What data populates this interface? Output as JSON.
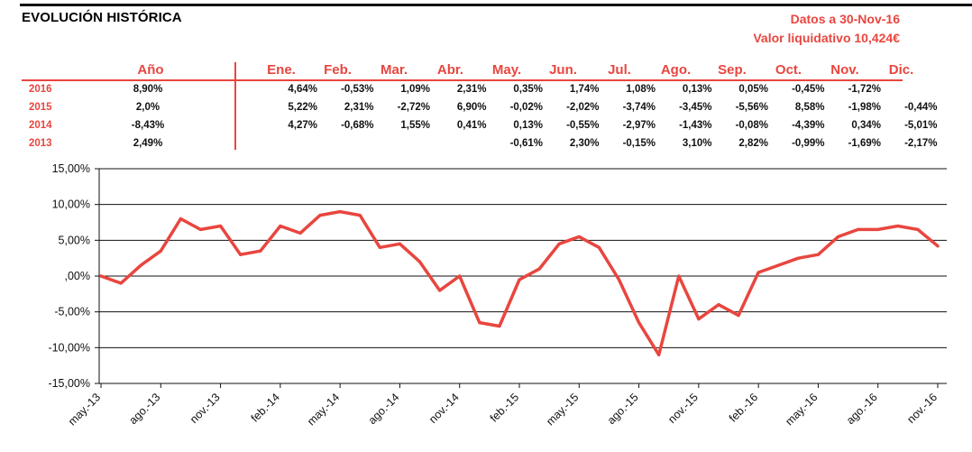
{
  "header": {
    "title": "EVOLUCIÓN HISTÓRICA",
    "date_label": "Datos a 30-Nov-16",
    "nav_label": "Valor liquidativo 10,424€"
  },
  "returns_table": {
    "headers": [
      "Año",
      "Ene.",
      "Feb.",
      "Mar.",
      "Abr.",
      "May.",
      "Jun.",
      "Jul.",
      "Ago.",
      "Sep.",
      "Oct.",
      "Nov.",
      "Dic."
    ],
    "rows": [
      {
        "year": "2016",
        "annual": "8,90%",
        "months": [
          "4,64%",
          "-0,53%",
          "1,09%",
          "2,31%",
          "0,35%",
          "1,74%",
          "1,08%",
          "0,13%",
          "0,05%",
          "-0,45%",
          "-1,72%",
          ""
        ]
      },
      {
        "year": "2015",
        "annual": "2,0%",
        "months": [
          "5,22%",
          "2,31%",
          "-2,72%",
          "6,90%",
          "-0,02%",
          "-2,02%",
          "-3,74%",
          "-3,45%",
          "-5,56%",
          "8,58%",
          "-1,98%",
          "-0,44%"
        ]
      },
      {
        "year": "2014",
        "annual": "-8,43%",
        "months": [
          "4,27%",
          "-0,68%",
          "1,55%",
          "0,41%",
          "0,13%",
          "-0,55%",
          "-2,97%",
          "-1,43%",
          "-0,08%",
          "-4,39%",
          "0,34%",
          "-5,01%"
        ]
      },
      {
        "year": "2013",
        "annual": "2,49%",
        "months": [
          "",
          "",
          "",
          "",
          "-0,61%",
          "2,30%",
          "-0,15%",
          "3,10%",
          "2,82%",
          "-0,99%",
          "-1,69%",
          "-2,17%"
        ]
      }
    ]
  },
  "chart_data": {
    "type": "line",
    "title": "",
    "xlabel": "",
    "ylabel": "",
    "ylim": [
      -15,
      15
    ],
    "yticks": [
      15,
      10,
      5,
      0,
      -5,
      -10,
      -15
    ],
    "ytick_labels": [
      "15,00%",
      "10,00%",
      "5,00%",
      ",00%",
      "-5,00%",
      "-10,00%",
      "-15,00%"
    ],
    "xtick_labels": [
      "may.-13",
      "ago.-13",
      "nov.-13",
      "feb.-14",
      "may.-14",
      "ago.-14",
      "nov.-14",
      "feb.-15",
      "may.-15",
      "ago.-15",
      "nov.-15",
      "feb.-16",
      "may.-16",
      "ago.-16",
      "nov.-16"
    ],
    "grid": true,
    "line_color": "#e8463f",
    "series": [
      {
        "x": [
          "may.-13",
          "jun.-13",
          "jul.-13",
          "ago.-13",
          "sep.-13",
          "oct.-13",
          "nov.-13",
          "dic.-13",
          "ene.-14",
          "feb.-14",
          "mar.-14",
          "abr.-14",
          "may.-14",
          "jun.-14",
          "jul.-14",
          "ago.-14",
          "sep.-14",
          "oct.-14",
          "nov.-14",
          "dic.-14",
          "ene.-15",
          "feb.-15",
          "mar.-15",
          "abr.-15",
          "may.-15",
          "jun.-15",
          "jul.-15",
          "ago.-15",
          "sep.-15",
          "oct.-15",
          "nov.-15",
          "dic.-15",
          "ene.-16",
          "feb.-16",
          "mar.-16",
          "abr.-16",
          "may.-16",
          "jun.-16",
          "jul.-16",
          "ago.-16",
          "sep.-16",
          "oct.-16",
          "nov.-16"
        ],
        "values": [
          0.0,
          -1.0,
          1.5,
          3.5,
          8.0,
          6.5,
          7.0,
          3.0,
          3.5,
          7.0,
          6.0,
          8.5,
          9.0,
          8.5,
          4.0,
          4.5,
          2.0,
          -2.0,
          0.0,
          -6.5,
          -7.0,
          -0.5,
          1.0,
          4.5,
          5.5,
          4.0,
          -0.5,
          -6.5,
          -11.0,
          0.0,
          -6.0,
          -4.0,
          -5.5,
          0.5,
          1.5,
          2.5,
          3.0,
          5.5,
          6.5,
          6.5,
          7.0,
          6.5,
          4.2
        ]
      }
    ]
  }
}
